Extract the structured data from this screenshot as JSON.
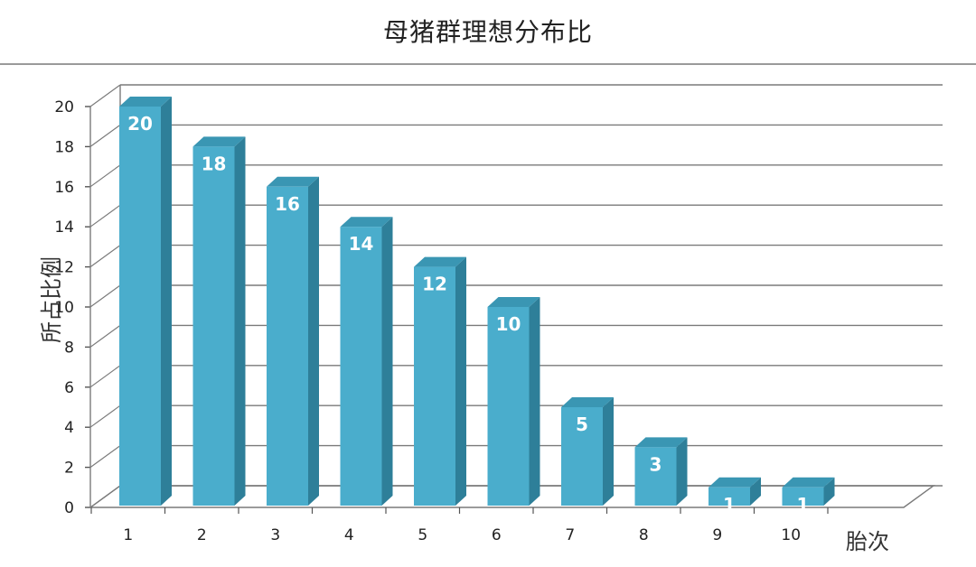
{
  "chart_data": {
    "type": "bar",
    "title": "母猪群理想分布比",
    "xlabel": "胎次",
    "ylabel": "所占比例",
    "categories": [
      "1",
      "2",
      "3",
      "4",
      "5",
      "6",
      "7",
      "8",
      "9",
      "10"
    ],
    "values": [
      20,
      18,
      16,
      14,
      12,
      10,
      5,
      3,
      1,
      1
    ],
    "data_labels": [
      "20",
      "18",
      "16",
      "14",
      "12",
      "10",
      "5",
      "3",
      "1",
      "1"
    ],
    "yticks": [
      "0",
      "2",
      "4",
      "6",
      "8",
      "10",
      "12",
      "14",
      "16",
      "18",
      "20"
    ],
    "ylim": [
      0,
      20
    ],
    "grid": true,
    "bar_color": "#4aadcc",
    "bar_side_color": "#2e7f99",
    "bar_top_color": "#3a96b3",
    "bar_style": "3d-column"
  }
}
